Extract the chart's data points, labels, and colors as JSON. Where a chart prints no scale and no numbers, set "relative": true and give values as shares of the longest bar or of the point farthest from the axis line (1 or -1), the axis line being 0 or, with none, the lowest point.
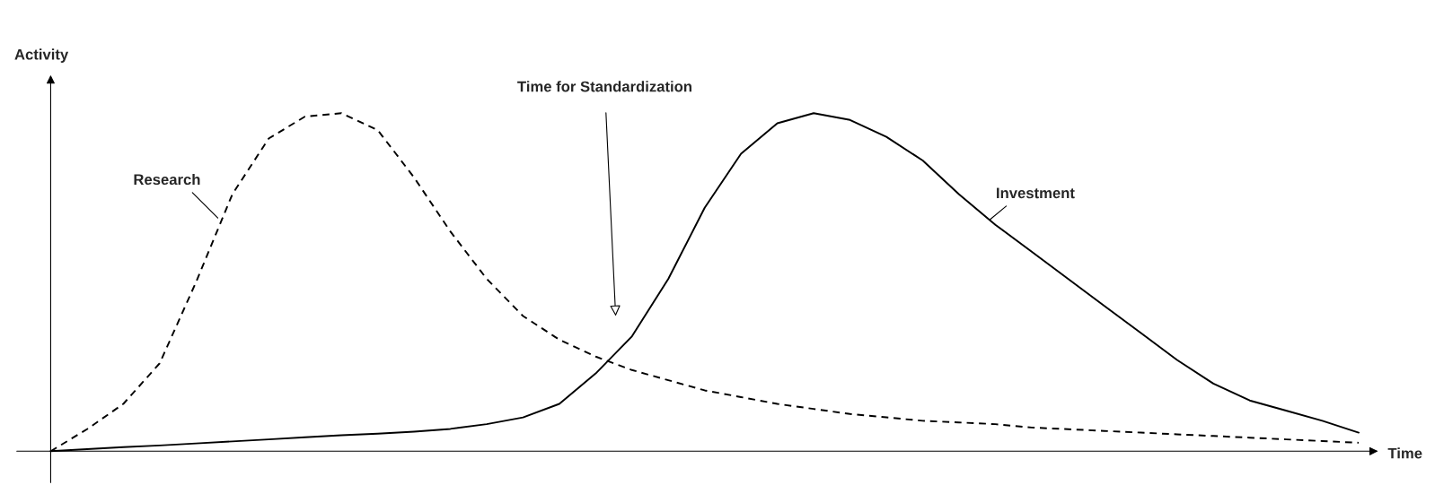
{
  "chart_data": {
    "type": "line",
    "relative": true,
    "xlabel": "Time",
    "ylabel": "Activity",
    "categories": [
      null,
      null,
      null,
      null,
      null,
      null,
      null,
      null,
      null,
      null,
      null,
      null,
      null,
      null,
      null,
      null,
      null,
      null,
      null,
      null,
      null,
      null,
      null,
      null,
      null,
      null,
      null,
      null,
      null,
      null,
      null,
      null,
      null,
      null,
      null,
      null,
      null
    ],
    "series": [
      {
        "name": "Research",
        "color": "#000000",
        "line_style": "dashed",
        "values": [
          0,
          0.065,
          0.14,
          0.26,
          0.5,
          0.76,
          0.925,
          0.99,
          1.0,
          0.95,
          0.81,
          0.65,
          0.51,
          0.4,
          0.33,
          0.28,
          0.24,
          0.21,
          0.18,
          0.16,
          0.14,
          0.125,
          0.11,
          0.1,
          0.09,
          0.085,
          0.08,
          0.07,
          0.065,
          0.06,
          0.055,
          0.05,
          0.045,
          0.04,
          0.035,
          0.03,
          0.025
        ]
      },
      {
        "name": "Investment",
        "color": "#000000",
        "line_style": "solid",
        "values": [
          0,
          0.006,
          0.012,
          0.017,
          0.023,
          0.029,
          0.035,
          0.041,
          0.047,
          0.052,
          0.058,
          0.066,
          0.08,
          0.1,
          0.14,
          0.23,
          0.34,
          0.51,
          0.72,
          0.88,
          0.97,
          1.0,
          0.98,
          0.93,
          0.86,
          0.76,
          0.67,
          0.59,
          0.51,
          0.43,
          0.35,
          0.27,
          0.2,
          0.15,
          0.12,
          0.09,
          0.055
        ]
      }
    ],
    "annotations": [
      "Time for Standardization"
    ],
    "legend": false
  }
}
